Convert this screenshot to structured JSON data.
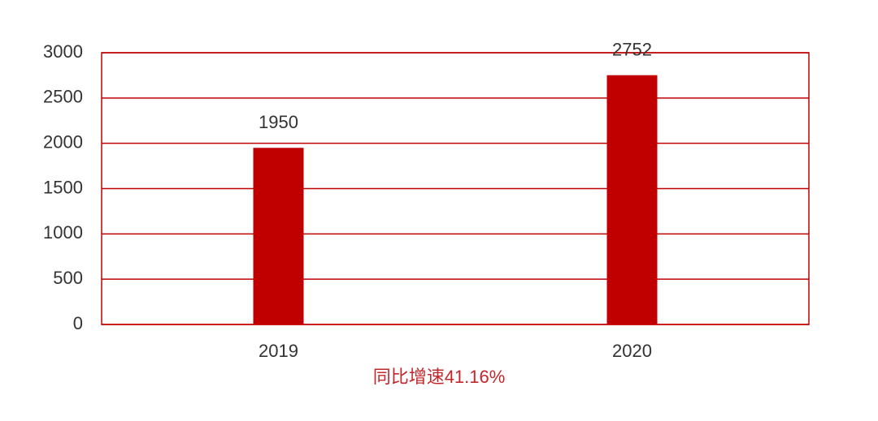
{
  "chart_data": {
    "type": "bar",
    "categories": [
      "2019",
      "2020"
    ],
    "values": [
      1950,
      2752
    ],
    "color": "#c00000",
    "ylim": [
      0,
      3000
    ],
    "yticks": [
      0,
      500,
      1000,
      1500,
      2000,
      2500,
      3000
    ],
    "grid": true,
    "grid_color": "#c00000",
    "annotation": "同比增速41.16%",
    "annotation_color": "#c0282d"
  }
}
